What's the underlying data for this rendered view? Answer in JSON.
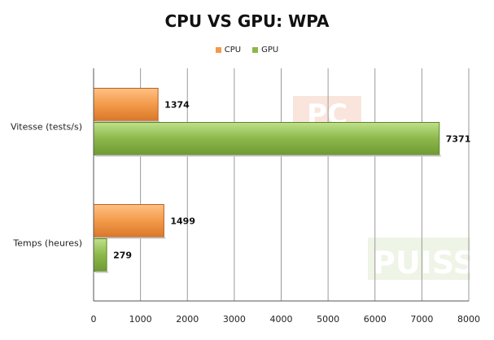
{
  "chart_data": {
    "type": "bar",
    "orientation": "horizontal",
    "title": "CPU VS GPU: WPA",
    "categories": [
      "Vitesse (tests/s)",
      "Temps (heures)"
    ],
    "series": [
      {
        "name": "CPU",
        "values": [
          1374,
          1499
        ],
        "color": "#f39a4a"
      },
      {
        "name": "GPU",
        "values": [
          7371,
          279
        ],
        "color": "#8cb84a"
      }
    ],
    "xlim": [
      0,
      8000
    ],
    "xticks": [
      0,
      1000,
      2000,
      3000,
      4000,
      5000,
      6000,
      7000,
      8000
    ],
    "grid": "vertical",
    "legend_position": "top"
  },
  "watermark": {
    "text_top": "PC",
    "text_bottom": "PUISSA"
  }
}
